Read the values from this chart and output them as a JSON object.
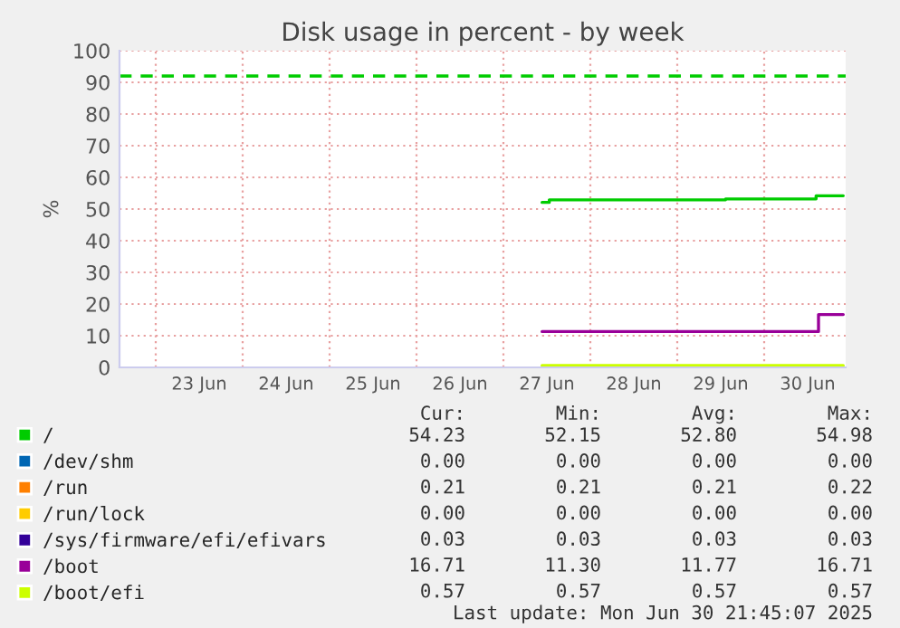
{
  "chart_data": {
    "type": "step",
    "title": "Disk usage in percent - by week",
    "ylabel": "%",
    "xlim": [
      "2025-06-22T14:00",
      "2025-06-30T22:30"
    ],
    "xticks": [
      {
        "value": "2025-06-23T00:00",
        "label": null
      },
      {
        "value": "2025-06-23T12:00",
        "label": "23 Jun"
      },
      {
        "value": "2025-06-24T00:00",
        "label": null
      },
      {
        "value": "2025-06-24T12:00",
        "label": "24 Jun"
      },
      {
        "value": "2025-06-25T00:00",
        "label": null
      },
      {
        "value": "2025-06-25T12:00",
        "label": "25 Jun"
      },
      {
        "value": "2025-06-26T00:00",
        "label": null
      },
      {
        "value": "2025-06-26T12:00",
        "label": "26 Jun"
      },
      {
        "value": "2025-06-27T00:00",
        "label": null
      },
      {
        "value": "2025-06-27T12:00",
        "label": "27 Jun"
      },
      {
        "value": "2025-06-28T00:00",
        "label": null
      },
      {
        "value": "2025-06-28T12:00",
        "label": "28 Jun"
      },
      {
        "value": "2025-06-29T00:00",
        "label": null
      },
      {
        "value": "2025-06-29T12:00",
        "label": "29 Jun"
      },
      {
        "value": "2025-06-30T00:00",
        "label": null
      },
      {
        "value": "2025-06-30T12:00",
        "label": "30 Jun"
      }
    ],
    "ylim": [
      0,
      100
    ],
    "yticks": [
      0,
      10,
      20,
      30,
      40,
      50,
      60,
      70,
      80,
      90,
      100
    ],
    "grid": true,
    "legend": "bottom",
    "series": [
      {
        "name": "/",
        "color": "#00cc00",
        "x": [
          "2025-06-27T10:40",
          "2025-06-27T12:40",
          "2025-06-29T13:20",
          "2025-06-30T14:20",
          "2025-06-30T21:50"
        ],
        "values": [
          52.1,
          52.9,
          53.2,
          54.2,
          54.2
        ]
      },
      {
        "name": "/dev/shm",
        "color": "#0066b3",
        "values": [
          null
        ]
      },
      {
        "name": "/run",
        "color": "#ff8000",
        "values": [
          null
        ]
      },
      {
        "name": "/run/lock",
        "color": "#ffcc00",
        "values": [
          null
        ]
      },
      {
        "name": "/sys/firmware/efi/efivars",
        "color": "#330099",
        "values": [
          null
        ]
      },
      {
        "name": "/boot",
        "color": "#990099",
        "x": [
          "2025-06-27T10:40",
          "2025-06-30T13:40",
          "2025-06-30T15:00",
          "2025-06-30T21:50"
        ],
        "values": [
          11.3,
          11.3,
          16.7,
          16.7
        ]
      },
      {
        "name": "/boot/efi",
        "color": "#ccff00",
        "x": [
          "2025-06-27T10:40",
          "2025-06-30T21:50"
        ],
        "values": [
          0.6,
          0.6
        ]
      }
    ],
    "ref_lines": [
      {
        "axis": "y",
        "value": 92,
        "label": null,
        "color": "#00cc00",
        "line_style": "dashed"
      }
    ],
    "annotations": [
      "Cur:",
      "Min:",
      "Avg:",
      "Max:",
      "54.23",
      "52.15",
      "52.80",
      "54.98",
      "0.00",
      "0.00",
      "0.00",
      "0.00",
      "0.21",
      "0.21",
      "0.21",
      "0.22",
      "0.00",
      "0.00",
      "0.00",
      "0.00",
      "0.03",
      "0.03",
      "0.03",
      "0.03",
      "16.71",
      "11.30",
      "11.77",
      "16.71",
      "0.57",
      "0.57",
      "0.57",
      "0.57",
      "Last update: Mon Jun 30 21:45:07 2025"
    ]
  }
}
